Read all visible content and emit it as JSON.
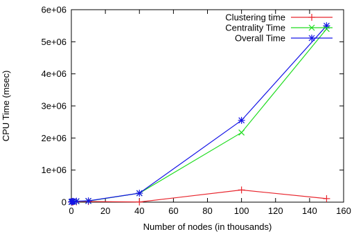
{
  "chart_data": {
    "type": "line",
    "title": "",
    "xlabel": "Number of nodes (in thousands)",
    "ylabel": "CPU Time (msec)",
    "xlim": [
      0,
      160
    ],
    "ylim": [
      0,
      6000000
    ],
    "x_ticks": [
      0,
      20,
      40,
      60,
      80,
      100,
      120,
      140,
      160
    ],
    "y_ticks": [
      0,
      1000000,
      2000000,
      3000000,
      4000000,
      5000000,
      6000000
    ],
    "x_tick_labels": [
      "0",
      "20",
      "40",
      "60",
      "80",
      "100",
      "120",
      "140",
      "160"
    ],
    "y_tick_labels": [
      "0",
      "1e+06",
      "2e+06",
      "3e+06",
      "4e+06",
      "5e+06",
      "6e+06"
    ],
    "grid": false,
    "legend_position": "top-right",
    "series": [
      {
        "name": "Clustering time",
        "color": "#e8242c",
        "marker": "plus",
        "x": [
          0.1,
          0.2,
          0.5,
          1,
          3,
          10,
          40,
          100,
          150
        ],
        "y": [
          2000,
          3000,
          5000,
          8000,
          10000,
          20000,
          5000,
          380000,
          110000
        ]
      },
      {
        "name": "Centrality Time",
        "color": "#1edc1e",
        "marker": "cross",
        "x": [
          0.1,
          0.2,
          0.5,
          1,
          3,
          10,
          40,
          100,
          150
        ],
        "y": [
          5000,
          8000,
          15000,
          20000,
          25000,
          35000,
          280000,
          2170000,
          5400000
        ]
      },
      {
        "name": "Overall Time",
        "color": "#1414e6",
        "marker": "star",
        "x": [
          0.1,
          0.2,
          0.5,
          1,
          3,
          10,
          40,
          100,
          150
        ],
        "y": [
          8000,
          10000,
          20000,
          25000,
          30000,
          40000,
          280000,
          2550000,
          5500000
        ]
      }
    ]
  }
}
